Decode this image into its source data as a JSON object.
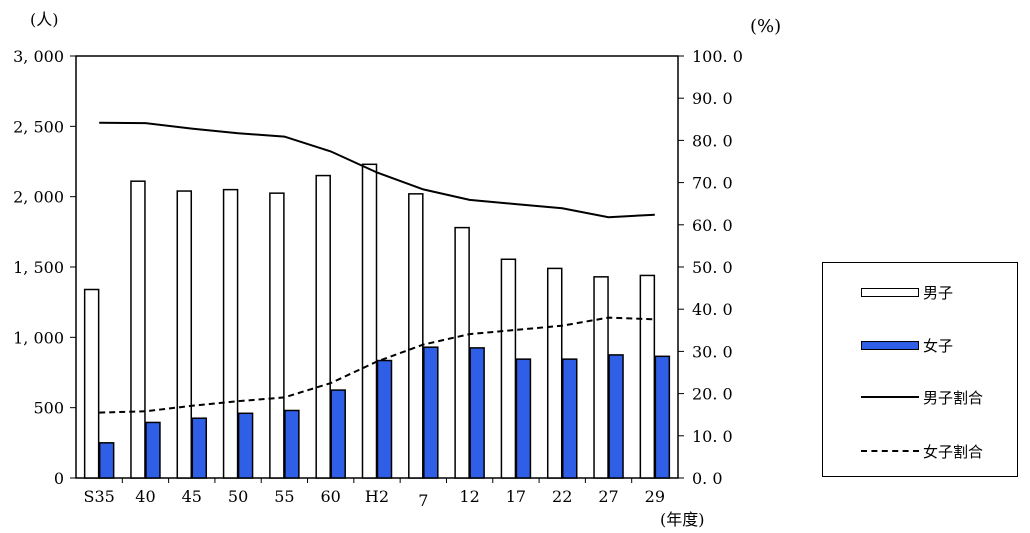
{
  "chart_data": {
    "type": "bar",
    "title": "",
    "xlabel": "(年度)",
    "ylabel_left": "(人)",
    "ylabel_right": "(%)",
    "categories": [
      "S35",
      "40",
      "45",
      "50",
      "55",
      "60",
      "H2",
      "7",
      "12",
      "17",
      "22",
      "27",
      "29"
    ],
    "ylim_left": [
      0,
      3000
    ],
    "ylim_right": [
      0,
      100
    ],
    "yticks_left": [
      "0",
      "500",
      "1, 000",
      "1, 500",
      "2, 000",
      "2, 500",
      "3, 000"
    ],
    "yticks_right": [
      "0. 0",
      "10. 0",
      "20. 0",
      "30. 0",
      "40. 0",
      "50. 0",
      "60. 0",
      "70. 0",
      "80. 0",
      "90. 0",
      "100. 0"
    ],
    "bar_series": [
      {
        "name": "男子",
        "color": "#ffffff",
        "values": [
          1340,
          2110,
          2040,
          2050,
          2025,
          2150,
          2230,
          2020,
          1780,
          1555,
          1490,
          1430,
          1440
        ]
      },
      {
        "name": "女子",
        "color": "#2f5fe6",
        "values": [
          250,
          395,
          425,
          460,
          480,
          625,
          835,
          930,
          925,
          845,
          845,
          875,
          865
        ]
      }
    ],
    "line_series": [
      {
        "name": "男子割合",
        "style": "solid",
        "values": [
          84.2,
          84.1,
          82.8,
          81.7,
          80.9,
          77.4,
          72.4,
          68.4,
          65.9,
          64.9,
          63.9,
          61.8,
          62.4
        ]
      },
      {
        "name": "女子割合",
        "style": "dashed",
        "values": [
          15.5,
          15.8,
          17.1,
          18.2,
          19.1,
          22.5,
          27.6,
          31.6,
          34.1,
          35.1,
          36.1,
          38.0,
          37.6
        ]
      }
    ],
    "grid": false,
    "legend": "right"
  }
}
